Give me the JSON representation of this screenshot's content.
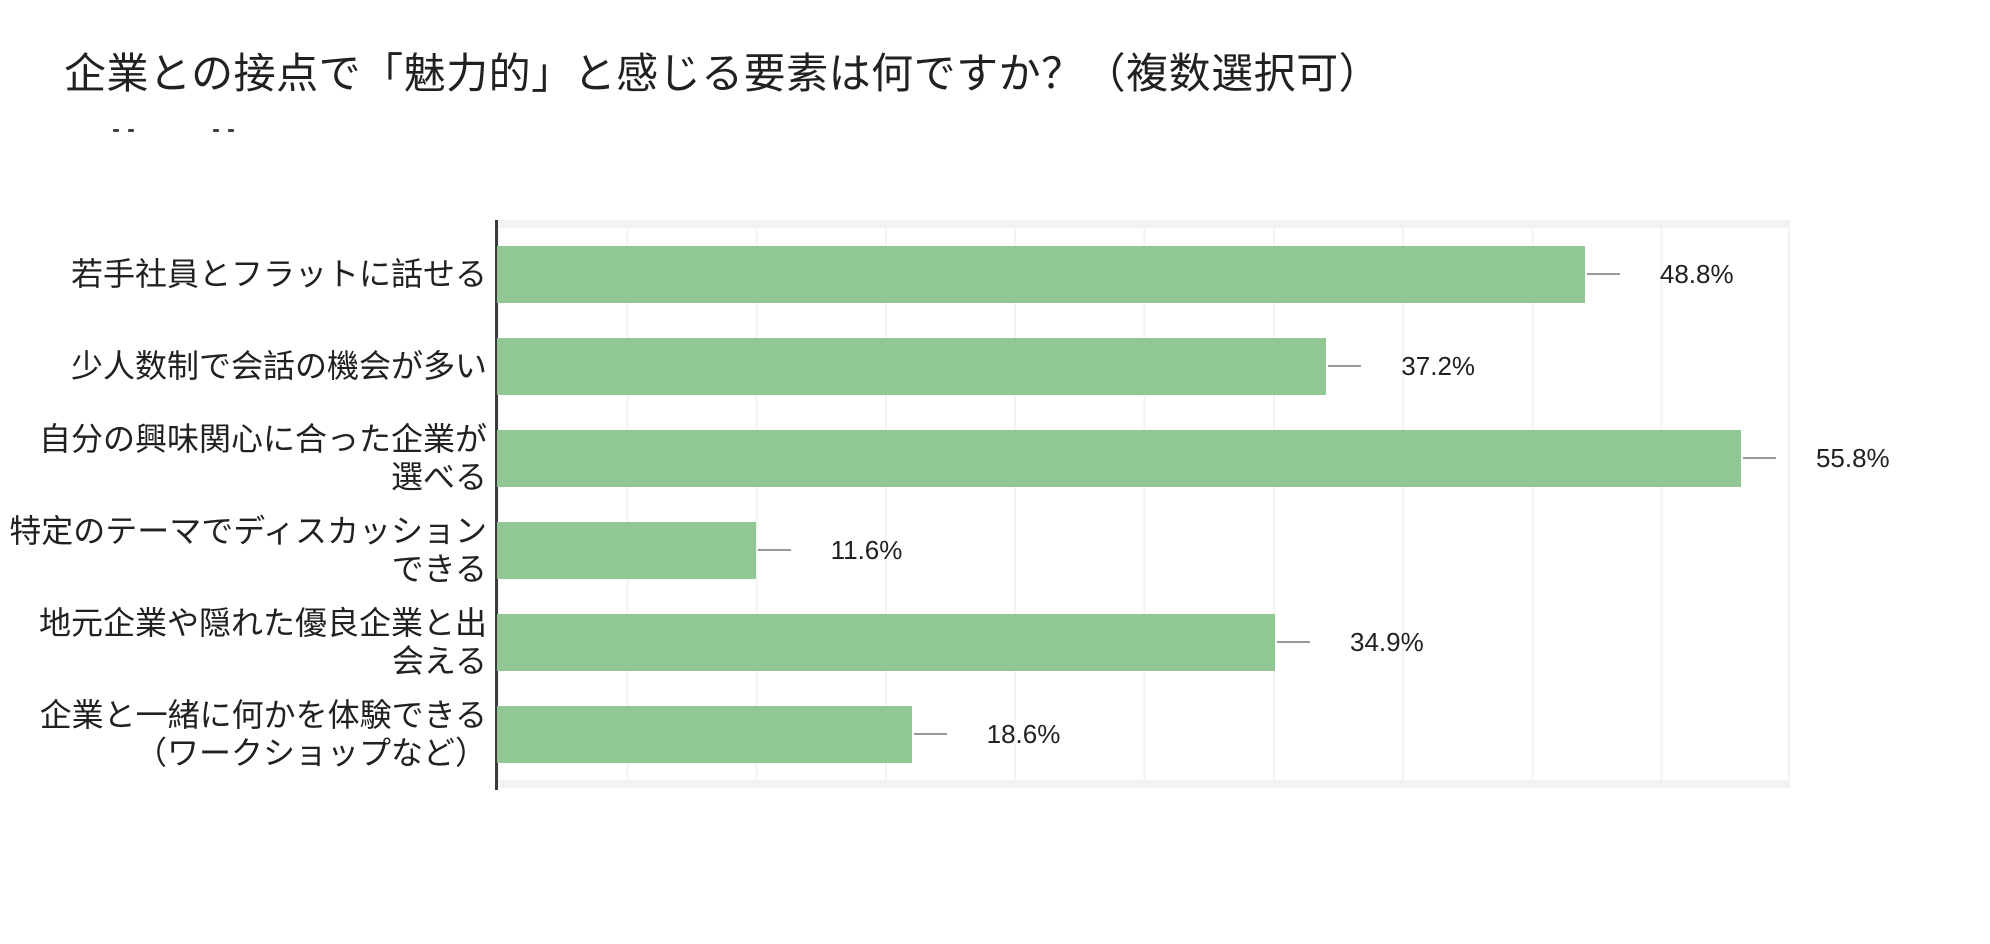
{
  "title": {
    "text": "企業との接点で「魅力的」と感じる要素は何ですか？（複数選択可）"
  },
  "chart_data": {
    "type": "bar",
    "orientation": "horizontal",
    "title": "企業との接点で「魅力的」と感じる要素は何ですか？（複数選択可）",
    "categories": [
      "若手社員とフラットに話せる",
      "少人数制で会話の機会が多い",
      "自分の興味関心に合った企業が\n選べる",
      "特定のテーマでディスカッション\nできる",
      "地元企業や隠れた優良企業と出\n会える",
      "企業と一緒に何かを体験できる\n（ワークショップなど）"
    ],
    "values": [
      48.8,
      37.2,
      55.8,
      11.6,
      34.9,
      18.6
    ],
    "value_labels": [
      "48.8%",
      "37.2%",
      "55.8%",
      "11.6%",
      "34.9%",
      "18.6%"
    ],
    "unit": "%",
    "xlabel": "",
    "ylabel": "",
    "xlim": [
      0,
      58
    ],
    "grid": "vertical",
    "grid_divisions": 10,
    "legend": "none",
    "colors": {
      "bar": "#91C794",
      "leader_line": "#999999",
      "axis_line": "#3a3a3a",
      "gridline": "#f3f3f3",
      "text": "#212121",
      "background": "#ffffff"
    }
  }
}
